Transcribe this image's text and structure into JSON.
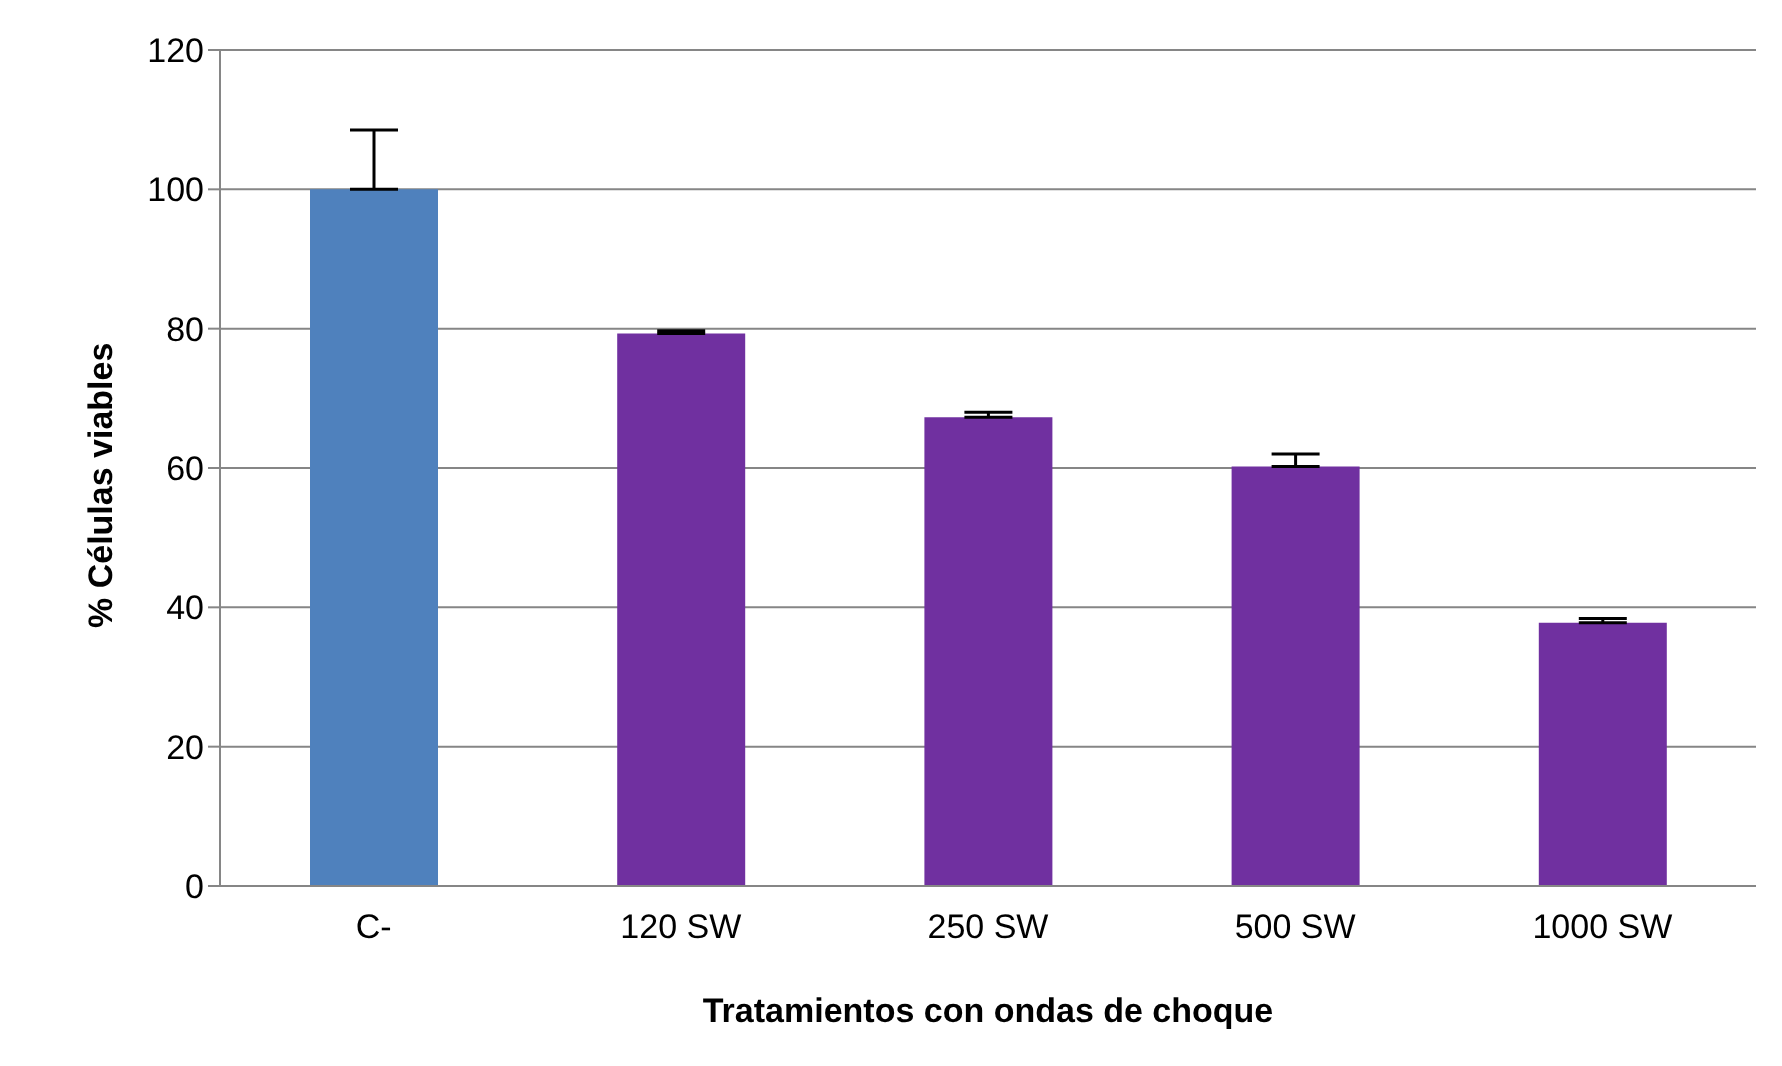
{
  "chart_data": {
    "type": "bar",
    "xlabel": "Tratamientos con ondas de choque",
    "ylabel": "% Células viables",
    "categories": [
      "C-",
      "120 SW",
      "250 SW",
      "500 SW",
      "1000 SW"
    ],
    "values": [
      100,
      79.3,
      67.3,
      60.2,
      37.8
    ],
    "colors": [
      "#4f81bd",
      "#7030a0",
      "#7030a0",
      "#7030a0",
      "#7030a0"
    ],
    "errors": [
      [
        100,
        108.5
      ],
      [
        79.3,
        79.7
      ],
      [
        67.3,
        68
      ],
      [
        60.2,
        62
      ],
      [
        37.8,
        38.4
      ]
    ],
    "ylim": [
      0,
      120
    ],
    "yticks": [
      0,
      20,
      40,
      60,
      80,
      100,
      120
    ],
    "grid": "y"
  }
}
